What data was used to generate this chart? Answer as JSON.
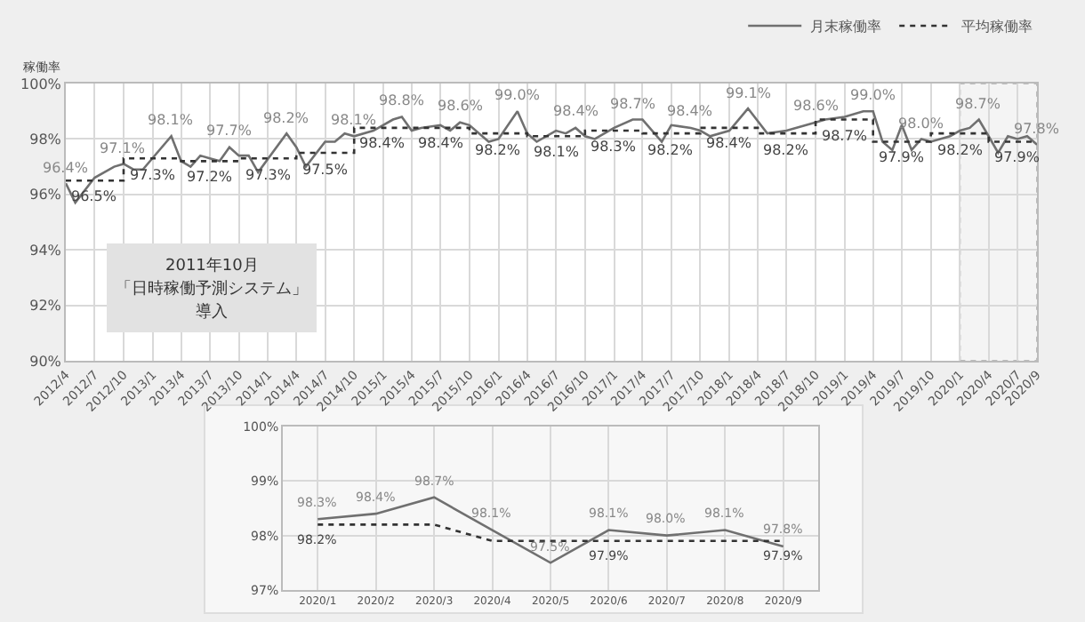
{
  "chart_data": [
    {
      "type": "line",
      "ylabel": "稼働率",
      "legend": "top right",
      "grid": true,
      "xlim": [
        "2012-04",
        "2020-09"
      ],
      "ylim": [
        90,
        100
      ],
      "yticks": [
        {
          "value": 90,
          "label": "90%"
        },
        {
          "value": 92,
          "label": "92%"
        },
        {
          "value": 94,
          "label": "94%"
        },
        {
          "value": 96,
          "label": "96%"
        },
        {
          "value": 98,
          "label": "98%"
        },
        {
          "value": 100,
          "label": "100%"
        }
      ],
      "xticks": [
        {
          "value": "2012-04",
          "label": "2012/4"
        },
        {
          "value": "2012-07",
          "label": "2012/7"
        },
        {
          "value": "2012-10",
          "label": "2012/10"
        },
        {
          "value": "2013-01",
          "label": "2013/1"
        },
        {
          "value": "2013-04",
          "label": "2013/4"
        },
        {
          "value": "2013-07",
          "label": "2013/7"
        },
        {
          "value": "2013-10",
          "label": "2013/10"
        },
        {
          "value": "2014-01",
          "label": "2014/1"
        },
        {
          "value": "2014-04",
          "label": "2014/4"
        },
        {
          "value": "2014-07",
          "label": "2014/7"
        },
        {
          "value": "2014-10",
          "label": "2014/10"
        },
        {
          "value": "2015-01",
          "label": "2015/1"
        },
        {
          "value": "2015-04",
          "label": "2015/4"
        },
        {
          "value": "2015-07",
          "label": "2015/7"
        },
        {
          "value": "2015-10",
          "label": "2015/10"
        },
        {
          "value": "2016-01",
          "label": "2016/1"
        },
        {
          "value": "2016-04",
          "label": "2016/4"
        },
        {
          "value": "2016-07",
          "label": "2016/7"
        },
        {
          "value": "2016-10",
          "label": "2016/10"
        },
        {
          "value": "2017-01",
          "label": "2017/1"
        },
        {
          "value": "2017-04",
          "label": "2017/4"
        },
        {
          "value": "2017-07",
          "label": "2017/7"
        },
        {
          "value": "2017-10",
          "label": "2017/10"
        },
        {
          "value": "2018-01",
          "label": "2018/1"
        },
        {
          "value": "2018-04",
          "label": "2018/4"
        },
        {
          "value": "2018-07",
          "label": "2018/7"
        },
        {
          "value": "2018-10",
          "label": "2018/10"
        },
        {
          "value": "2019-01",
          "label": "2019/1"
        },
        {
          "value": "2019-04",
          "label": "2019/4"
        },
        {
          "value": "2019-07",
          "label": "2019/7"
        },
        {
          "value": "2019-10",
          "label": "2019/10"
        },
        {
          "value": "2020-01",
          "label": "2020/1"
        },
        {
          "value": "2020-04",
          "label": "2020/4"
        },
        {
          "value": "2020-07",
          "label": "2020/7"
        },
        {
          "value": "2020-09",
          "label": "2020/9"
        }
      ],
      "series": [
        {
          "name": "月末稼働率",
          "color": "#707070",
          "line_style": "solid",
          "x": [
            "2012-04",
            "2012-05",
            "2012-07",
            "2012-09",
            "2012-10",
            "2012-11",
            "2012-12",
            "2013-03",
            "2013-04",
            "2013-05",
            "2013-06",
            "2013-07",
            "2013-08",
            "2013-09",
            "2013-10",
            "2013-11",
            "2013-12",
            "2014-03",
            "2014-04",
            "2014-05",
            "2014-07",
            "2014-08",
            "2014-09",
            "2014-10",
            "2014-12",
            "2015-02",
            "2015-03",
            "2015-04",
            "2015-05",
            "2015-07",
            "2015-08",
            "2015-09",
            "2015-10",
            "2015-12",
            "2016-01",
            "2016-03",
            "2016-04",
            "2016-05",
            "2016-07",
            "2016-08",
            "2016-09",
            "2016-10",
            "2016-11",
            "2017-01",
            "2017-03",
            "2017-04",
            "2017-06",
            "2017-07",
            "2017-09",
            "2017-10",
            "2017-11",
            "2018-01",
            "2018-03",
            "2018-05",
            "2018-07",
            "2018-09",
            "2018-10",
            "2018-11",
            "2019-01",
            "2019-03",
            "2019-04",
            "2019-05",
            "2019-06",
            "2019-07",
            "2019-08",
            "2019-09",
            "2019-10",
            "2019-12",
            "2020-01",
            "2020-02",
            "2020-03",
            "2020-04",
            "2020-05",
            "2020-06",
            "2020-07",
            "2020-08",
            "2020-09"
          ],
          "values": [
            96.4,
            95.7,
            96.6,
            97.0,
            97.1,
            96.9,
            96.9,
            98.1,
            97.2,
            97.0,
            97.4,
            97.3,
            97.2,
            97.7,
            97.4,
            97.4,
            96.8,
            98.2,
            97.7,
            97.0,
            97.9,
            97.9,
            98.2,
            98.1,
            98.3,
            98.7,
            98.8,
            98.3,
            98.4,
            98.5,
            98.3,
            98.6,
            98.5,
            97.9,
            98.0,
            99.0,
            98.2,
            97.9,
            98.3,
            98.2,
            98.4,
            98.1,
            98.0,
            98.4,
            98.7,
            98.7,
            97.9,
            98.5,
            98.4,
            98.3,
            98.1,
            98.3,
            99.1,
            98.2,
            98.3,
            98.5,
            98.6,
            98.7,
            98.8,
            99.0,
            99.0,
            97.9,
            97.6,
            98.5,
            97.6,
            98.0,
            97.9,
            98.1,
            98.3,
            98.4,
            98.7,
            98.1,
            97.5,
            98.1,
            98.0,
            98.1,
            97.8
          ]
        },
        {
          "name": "平均稼働率",
          "color": "#333333",
          "type": "step",
          "line_style": "dotted",
          "x": [
            "2012-04",
            "2012-10",
            "2013-04",
            "2013-10",
            "2014-04",
            "2014-10",
            "2015-04",
            "2015-10",
            "2016-04",
            "2016-10",
            "2017-04",
            "2017-10",
            "2018-04",
            "2018-10",
            "2019-04",
            "2019-10",
            "2020-04",
            "2020-09"
          ],
          "values": [
            96.5,
            97.3,
            97.2,
            97.3,
            97.5,
            98.4,
            98.4,
            98.2,
            98.1,
            98.3,
            98.2,
            98.4,
            98.2,
            98.7,
            97.9,
            98.2,
            97.9,
            97.9
          ]
        }
      ],
      "bands": [
        {
          "axis": "x",
          "from": "2020-01",
          "to": "2020-09",
          "color": "#f4f4f4"
        }
      ],
      "annotations": [
        {
          "text": "96.4%",
          "x": "2012-04",
          "y": 96.4
        },
        {
          "text": "96.5%",
          "x": "2012-07",
          "y": 96.5
        },
        {
          "text": "97.1%",
          "x": "2012-10",
          "y": 97.1
        },
        {
          "text": "97.3%",
          "x": "2013-01",
          "y": 97.3
        },
        {
          "text": "98.1%",
          "x": "2013-03",
          "y": 98.1
        },
        {
          "text": "97.2%",
          "x": "2013-07",
          "y": 97.2
        },
        {
          "text": "97.7%",
          "x": "2013-09",
          "y": 97.7
        },
        {
          "text": "97.3%",
          "x": "2014-01",
          "y": 97.3
        },
        {
          "text": "98.2%",
          "x": "2014-03",
          "y": 98.2
        },
        {
          "text": "97.5%",
          "x": "2014-07",
          "y": 97.5
        },
        {
          "text": "98.1%",
          "x": "2014-10",
          "y": 98.1
        },
        {
          "text": "98.4%",
          "x": "2015-01",
          "y": 98.4
        },
        {
          "text": "98.8%",
          "x": "2015-03",
          "y": 98.8
        },
        {
          "text": "98.4%",
          "x": "2015-07",
          "y": 98.4
        },
        {
          "text": "98.6%",
          "x": "2015-09",
          "y": 98.6
        },
        {
          "text": "98.2%",
          "x": "2016-01",
          "y": 98.2
        },
        {
          "text": "99.0%",
          "x": "2016-03",
          "y": 99.0
        },
        {
          "text": "98.1%",
          "x": "2016-07",
          "y": 98.1
        },
        {
          "text": "98.4%",
          "x": "2016-09",
          "y": 98.4
        },
        {
          "text": "98.3%",
          "x": "2017-01",
          "y": 98.3
        },
        {
          "text": "98.7%",
          "x": "2017-03",
          "y": 98.7
        },
        {
          "text": "98.2%",
          "x": "2017-07",
          "y": 98.2
        },
        {
          "text": "98.4%",
          "x": "2017-09",
          "y": 98.4
        },
        {
          "text": "98.4%",
          "x": "2018-01",
          "y": 98.4
        },
        {
          "text": "99.1%",
          "x": "2018-03",
          "y": 99.1
        },
        {
          "text": "98.2%",
          "x": "2018-07",
          "y": 98.2
        },
        {
          "text": "98.6%",
          "x": "2018-10",
          "y": 98.6
        },
        {
          "text": "98.7%",
          "x": "2019-01",
          "y": 98.7
        },
        {
          "text": "99.0%",
          "x": "2019-04",
          "y": 99.0
        },
        {
          "text": "97.9%",
          "x": "2019-07",
          "y": 97.9
        },
        {
          "text": "98.0%",
          "x": "2019-09",
          "y": 98.0
        },
        {
          "text": "98.2%",
          "x": "2020-01",
          "y": 98.2
        },
        {
          "text": "98.7%",
          "x": "2020-03",
          "y": 98.7
        },
        {
          "text": "97.9%",
          "x": "2020-07",
          "y": 97.9
        },
        {
          "text": "97.8%",
          "x": "2020-09",
          "y": 97.8
        },
        "2011年10月",
        "「日時稼働予測システム」",
        "導入"
      ]
    },
    {
      "type": "line",
      "grid": true,
      "legend": false,
      "categories": [
        "2020/1",
        "2020/2",
        "2020/3",
        "2020/4",
        "2020/5",
        "2020/6",
        "2020/7",
        "2020/8",
        "2020/9"
      ],
      "ylim": [
        97,
        100
      ],
      "yticks": [
        {
          "value": 97,
          "label": "97%"
        },
        {
          "value": 98,
          "label": "98%"
        },
        {
          "value": 99,
          "label": "99%"
        },
        {
          "value": 100,
          "label": "100%"
        }
      ],
      "series": [
        {
          "color": "#707070",
          "line_style": "solid",
          "values": [
            98.3,
            98.4,
            98.7,
            98.1,
            97.5,
            98.1,
            98.0,
            98.1,
            97.8
          ]
        },
        {
          "color": "#333333",
          "line_style": "dotted",
          "values": [
            98.2,
            98.2,
            98.2,
            97.9,
            97.9,
            97.9,
            97.9,
            97.9,
            97.9
          ]
        }
      ],
      "annotations": [
        {
          "text": "98.3%",
          "x": "2020/1",
          "y": 98.3
        },
        {
          "text": "98.4%",
          "x": "2020/2",
          "y": 98.4
        },
        {
          "text": "98.7%",
          "x": "2020/3",
          "y": 98.7
        },
        {
          "text": "98.1%",
          "x": "2020/4",
          "y": 98.1
        },
        {
          "text": "97.5%",
          "x": "2020/5",
          "y": 97.5
        },
        {
          "text": "98.1%",
          "x": "2020/6",
          "y": 98.1
        },
        {
          "text": "98.0%",
          "x": "2020/7",
          "y": 98.0
        },
        {
          "text": "98.1%",
          "x": "2020/8",
          "y": 98.1
        },
        {
          "text": "97.8%",
          "x": "2020/9",
          "y": 97.8
        },
        {
          "text": "98.2%",
          "x": "2020/1",
          "y": 98.2
        },
        {
          "text": "97.9%",
          "x": "2020/6",
          "y": 97.9
        },
        {
          "text": "97.9%",
          "x": "2020/9",
          "y": 97.9
        }
      ]
    }
  ]
}
